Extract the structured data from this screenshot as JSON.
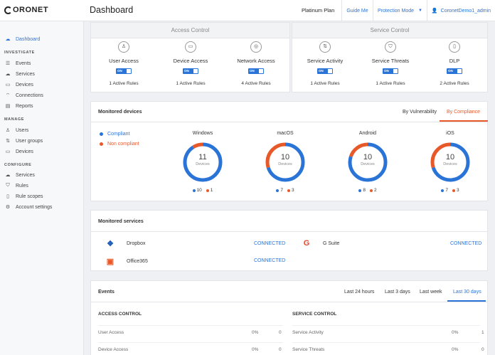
{
  "brand": "ORONET",
  "header": {
    "title": "Dashboard",
    "plan": "Platinum Plan",
    "guide": "Guide Me",
    "mode": "Protection Mode",
    "user": "CoronetDemo1_admin"
  },
  "sidebar": {
    "dashboard": "Dashboard",
    "investigate_head": "INVESTIGATE",
    "investigate": [
      "Events",
      "Services",
      "Devices",
      "Connections",
      "Reports"
    ],
    "manage_head": "MANAGE",
    "manage": [
      "Users",
      "User groups",
      "Devices"
    ],
    "configure_head": "CONFIGURE",
    "configure": [
      "Services",
      "Rules",
      "Rule scopes",
      "Account settings"
    ]
  },
  "access_control": {
    "title": "Access Control",
    "items": [
      {
        "label": "User Access",
        "toggle": "ON",
        "rules": "1 Active Rules",
        "icon": "user-icon"
      },
      {
        "label": "Device Access",
        "toggle": "ON",
        "rules": "1 Active Rules",
        "icon": "devices-icon"
      },
      {
        "label": "Network Access",
        "toggle": "ON",
        "rules": "4 Active Rules",
        "icon": "wifi-icon"
      }
    ]
  },
  "service_control": {
    "title": "Service Control",
    "items": [
      {
        "label": "Service Activity",
        "toggle": "ON",
        "rules": "1 Active Rules",
        "icon": "activity-icon"
      },
      {
        "label": "Service Threats",
        "toggle": "ON",
        "rules": "1 Active Rules",
        "icon": "shield-icon"
      },
      {
        "label": "DLP",
        "toggle": "ON",
        "rules": "2 Active Rules",
        "icon": "document-icon"
      }
    ]
  },
  "monitored_devices": {
    "title": "Monitored devices",
    "tabs": [
      "By Vulnerability",
      "By Compliance"
    ],
    "legend": {
      "compliant": "Compliant",
      "non_compliant": "Non compliant"
    },
    "donuts": [
      {
        "os": "Windows",
        "total": "11",
        "unit": "Devices",
        "compliant": "10",
        "non_compliant": "1"
      },
      {
        "os": "macOS",
        "total": "10",
        "unit": "Devices",
        "compliant": "7",
        "non_compliant": "3"
      },
      {
        "os": "Android",
        "total": "10",
        "unit": "Devices",
        "compliant": "8",
        "non_compliant": "2"
      },
      {
        "os": "iOS",
        "total": "10",
        "unit": "Devices",
        "compliant": "7",
        "non_compliant": "3"
      }
    ],
    "colors": {
      "compliant": "#2b74d7",
      "non_compliant": "#e8592a"
    }
  },
  "monitored_services": {
    "title": "Monitored services",
    "items": [
      {
        "name": "Dropbox",
        "status": "CONNECTED",
        "icon": "dropbox-icon"
      },
      {
        "name": "G Suite",
        "status": "CONNECTED",
        "icon": "google-icon"
      },
      {
        "name": "Office365",
        "status": "CONNECTED",
        "icon": "office-icon"
      }
    ]
  },
  "events": {
    "title": "Events",
    "tabs": [
      "Last 24 hours",
      "Last 3 days",
      "Last week",
      "Last 30 days"
    ],
    "access_head": "ACCESS CONTROL",
    "service_head": "SERVICE CONTROL",
    "access_rows": [
      {
        "name": "User Access",
        "pct": "0%",
        "count": "0"
      },
      {
        "name": "Device Access",
        "pct": "0%",
        "count": "0"
      }
    ],
    "service_rows": [
      {
        "name": "Service Activity",
        "pct": "0%",
        "count": "1"
      },
      {
        "name": "Service Threats",
        "pct": "0%",
        "count": "0"
      }
    ]
  }
}
